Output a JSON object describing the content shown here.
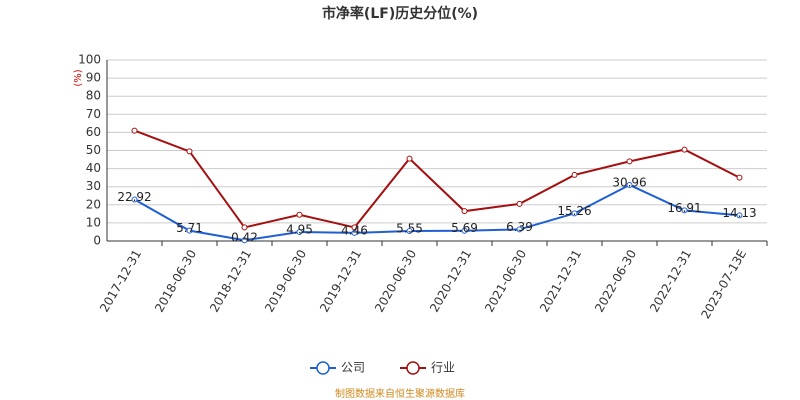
{
  "chart_data": {
    "type": "line",
    "title": "市净率(LF)历史分位(%)",
    "ylabel": "(%)",
    "categories": [
      "2017-12-31",
      "2018-06-30",
      "2018-12-31",
      "2019-06-30",
      "2019-12-31",
      "2020-06-30",
      "2020-12-31",
      "2021-06-30",
      "2021-12-31",
      "2022-06-30",
      "2022-12-31",
      "2023-07-13E"
    ],
    "series": [
      {
        "name": "公司",
        "color": "#1f5fd6",
        "values": [
          22.92,
          5.71,
          0.42,
          4.95,
          4.46,
          5.55,
          5.69,
          6.39,
          15.26,
          30.96,
          16.91,
          14.13
        ],
        "data_labels": true
      },
      {
        "name": "行业",
        "color": "#a50f0f",
        "values": [
          61,
          49.5,
          7.5,
          14.5,
          7.5,
          45.5,
          16.5,
          20.5,
          36.5,
          44,
          50.5,
          35
        ],
        "data_labels": false
      }
    ],
    "ylim": [
      0,
      100
    ],
    "yticks": [
      0,
      10,
      20,
      30,
      40,
      50,
      60,
      70,
      80,
      90,
      100
    ],
    "grid": true,
    "legend": "bottom",
    "source": "制图数据来自恒生聚源数据库"
  }
}
